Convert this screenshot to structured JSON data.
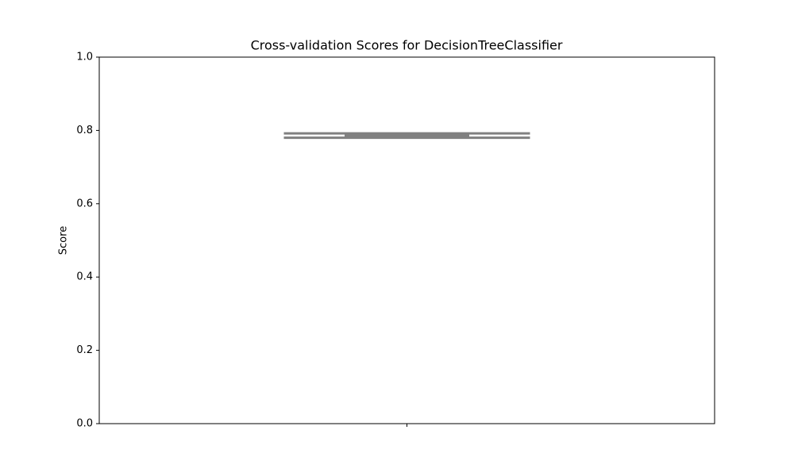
{
  "chart_data": {
    "type": "box",
    "title": "Cross-validation Scores for DecisionTreeClassifier",
    "ylabel": "Score",
    "categories": [
      null
    ],
    "boxes": [
      {
        "whislo": 0.78,
        "q1": 0.78,
        "med": 0.784,
        "q3": 0.792,
        "whishi": 0.792
      }
    ],
    "color": "#808080",
    "ylim": [
      0,
      1
    ],
    "yticks": [
      {
        "value": 0,
        "label": "0.0"
      },
      0.2,
      0.4,
      0.6,
      0.8,
      {
        "value": 1,
        "label": "1.0"
      }
    ],
    "grid": false
  }
}
